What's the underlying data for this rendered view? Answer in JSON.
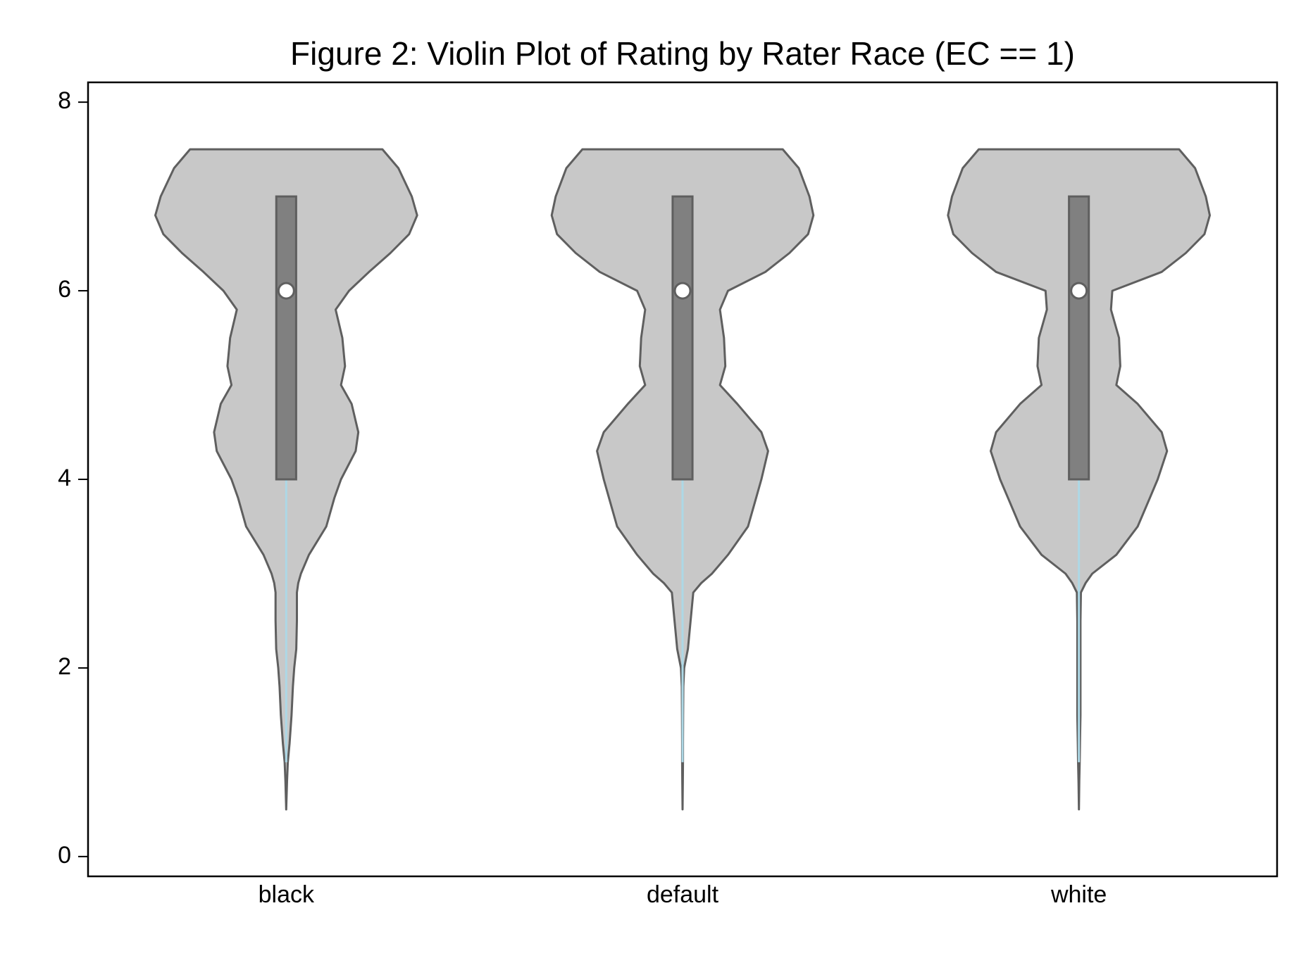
{
  "chart_data": {
    "type": "violin",
    "title": "Figure 2: Violin Plot of Rating by Rater Race (EC == 1)",
    "categories": [
      "black",
      "default",
      "white"
    ],
    "ylim": [
      -0.21,
      8.21
    ],
    "yticks": [
      0,
      2,
      4,
      6,
      8
    ],
    "violin_color": "#c8c8c8",
    "edge_color": "#5f5f5f",
    "box_color": "#808080",
    "whisker_color": "#add8e6",
    "groups": [
      {
        "density_y": [
          7.5,
          7.3,
          7.0,
          6.8,
          6.6,
          6.4,
          6.2,
          6.0,
          5.8,
          5.5,
          5.2,
          5.0,
          4.8,
          4.5,
          4.3,
          4.0,
          3.8,
          3.5,
          3.2,
          3.0,
          2.9,
          2.8,
          2.5,
          2.2,
          2.0,
          1.8,
          1.5,
          1.2,
          1.0,
          0.8,
          0.5
        ],
        "density": [
          0.72,
          0.84,
          0.94,
          0.98,
          0.92,
          0.78,
          0.62,
          0.47,
          0.37,
          0.42,
          0.44,
          0.41,
          0.49,
          0.54,
          0.52,
          0.41,
          0.36,
          0.3,
          0.17,
          0.11,
          0.09,
          0.08,
          0.08,
          0.075,
          0.06,
          0.05,
          0.04,
          0.025,
          0.012,
          0.006,
          0
        ],
        "whisker_low": 1,
        "q1": 4,
        "median": 6,
        "q3": 7,
        "whisker_high": 7
      },
      {
        "density_y": [
          7.5,
          7.3,
          7.0,
          6.8,
          6.6,
          6.4,
          6.2,
          6.0,
          5.8,
          5.5,
          5.2,
          5.0,
          4.8,
          4.5,
          4.3,
          4.0,
          3.8,
          3.5,
          3.2,
          3.0,
          2.9,
          2.8,
          2.5,
          2.2,
          2.0,
          1.8,
          1.5,
          1.2,
          1.0,
          0.8,
          0.5
        ],
        "density": [
          0.75,
          0.87,
          0.95,
          0.98,
          0.94,
          0.8,
          0.62,
          0.34,
          0.28,
          0.31,
          0.32,
          0.28,
          0.41,
          0.59,
          0.64,
          0.59,
          0.55,
          0.49,
          0.34,
          0.22,
          0.14,
          0.08,
          0.06,
          0.04,
          0.012,
          0.006,
          0.004,
          0.003,
          0.003,
          0.002,
          0
        ],
        "whisker_low": 1,
        "q1": 4,
        "median": 6,
        "q3": 7,
        "whisker_high": 7
      },
      {
        "density_y": [
          7.5,
          7.3,
          7.0,
          6.8,
          6.6,
          6.4,
          6.2,
          6.0,
          5.8,
          5.5,
          5.2,
          5.0,
          4.8,
          4.5,
          4.3,
          4.0,
          3.8,
          3.5,
          3.2,
          3.0,
          2.9,
          2.8,
          2.5,
          2.2,
          2.0,
          1.8,
          1.5,
          1.2,
          1.0,
          0.8,
          0.5
        ],
        "density": [
          0.75,
          0.87,
          0.95,
          0.98,
          0.94,
          0.8,
          0.62,
          0.25,
          0.24,
          0.3,
          0.31,
          0.28,
          0.44,
          0.62,
          0.66,
          0.59,
          0.53,
          0.44,
          0.28,
          0.1,
          0.05,
          0.015,
          0.012,
          0.012,
          0.012,
          0.012,
          0.012,
          0.008,
          0.006,
          0.003,
          0
        ],
        "whisker_low": 1,
        "q1": 4,
        "median": 6,
        "q3": 7,
        "whisker_high": 7
      }
    ]
  }
}
